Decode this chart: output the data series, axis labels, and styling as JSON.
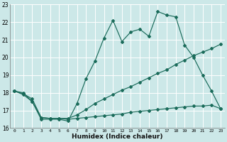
{
  "title": "",
  "xlabel": "Humidex (Indice chaleur)",
  "ylabel": "",
  "bg_color": "#cce8e8",
  "grid_color": "#ffffff",
  "line_color": "#1a6b5a",
  "xlim": [
    -0.5,
    23.5
  ],
  "ylim": [
    16,
    23
  ],
  "xticks": [
    0,
    1,
    2,
    3,
    4,
    5,
    6,
    7,
    8,
    9,
    10,
    11,
    12,
    13,
    14,
    15,
    16,
    17,
    18,
    19,
    20,
    21,
    22,
    23
  ],
  "yticks": [
    16,
    17,
    18,
    19,
    20,
    21,
    22,
    23
  ],
  "line1_x": [
    0,
    1,
    2,
    3,
    4,
    5,
    6,
    7,
    8,
    9,
    10,
    11,
    12,
    13,
    14,
    15,
    16,
    17,
    18,
    19,
    20,
    21,
    22,
    23
  ],
  "line1_y": [
    18.1,
    18.0,
    17.5,
    16.5,
    16.5,
    16.5,
    16.4,
    17.4,
    18.8,
    19.8,
    21.1,
    22.1,
    20.9,
    21.45,
    21.6,
    21.2,
    22.6,
    22.4,
    22.3,
    20.7,
    20.0,
    19.0,
    18.1,
    17.1
  ],
  "line2_x": [
    0,
    1,
    2,
    3,
    4,
    5,
    6,
    7,
    8,
    9,
    10,
    11,
    12,
    13,
    14,
    15,
    16,
    17,
    18,
    19,
    20,
    21,
    22,
    23
  ],
  "line2_y": [
    18.1,
    17.9,
    17.5,
    16.6,
    16.55,
    16.55,
    16.55,
    16.75,
    17.05,
    17.4,
    17.65,
    17.9,
    18.15,
    18.35,
    18.6,
    18.85,
    19.1,
    19.3,
    19.6,
    19.85,
    20.1,
    20.3,
    20.5,
    20.75
  ],
  "line3_x": [
    0,
    1,
    2,
    3,
    4,
    5,
    6,
    7,
    8,
    9,
    10,
    11,
    12,
    13,
    14,
    15,
    16,
    17,
    18,
    19,
    20,
    21,
    22,
    23
  ],
  "line3_y": [
    18.1,
    17.95,
    17.65,
    16.6,
    16.55,
    16.55,
    16.5,
    16.55,
    16.6,
    16.65,
    16.7,
    16.75,
    16.8,
    16.9,
    16.95,
    17.0,
    17.05,
    17.1,
    17.15,
    17.2,
    17.25,
    17.25,
    17.3,
    17.1
  ]
}
